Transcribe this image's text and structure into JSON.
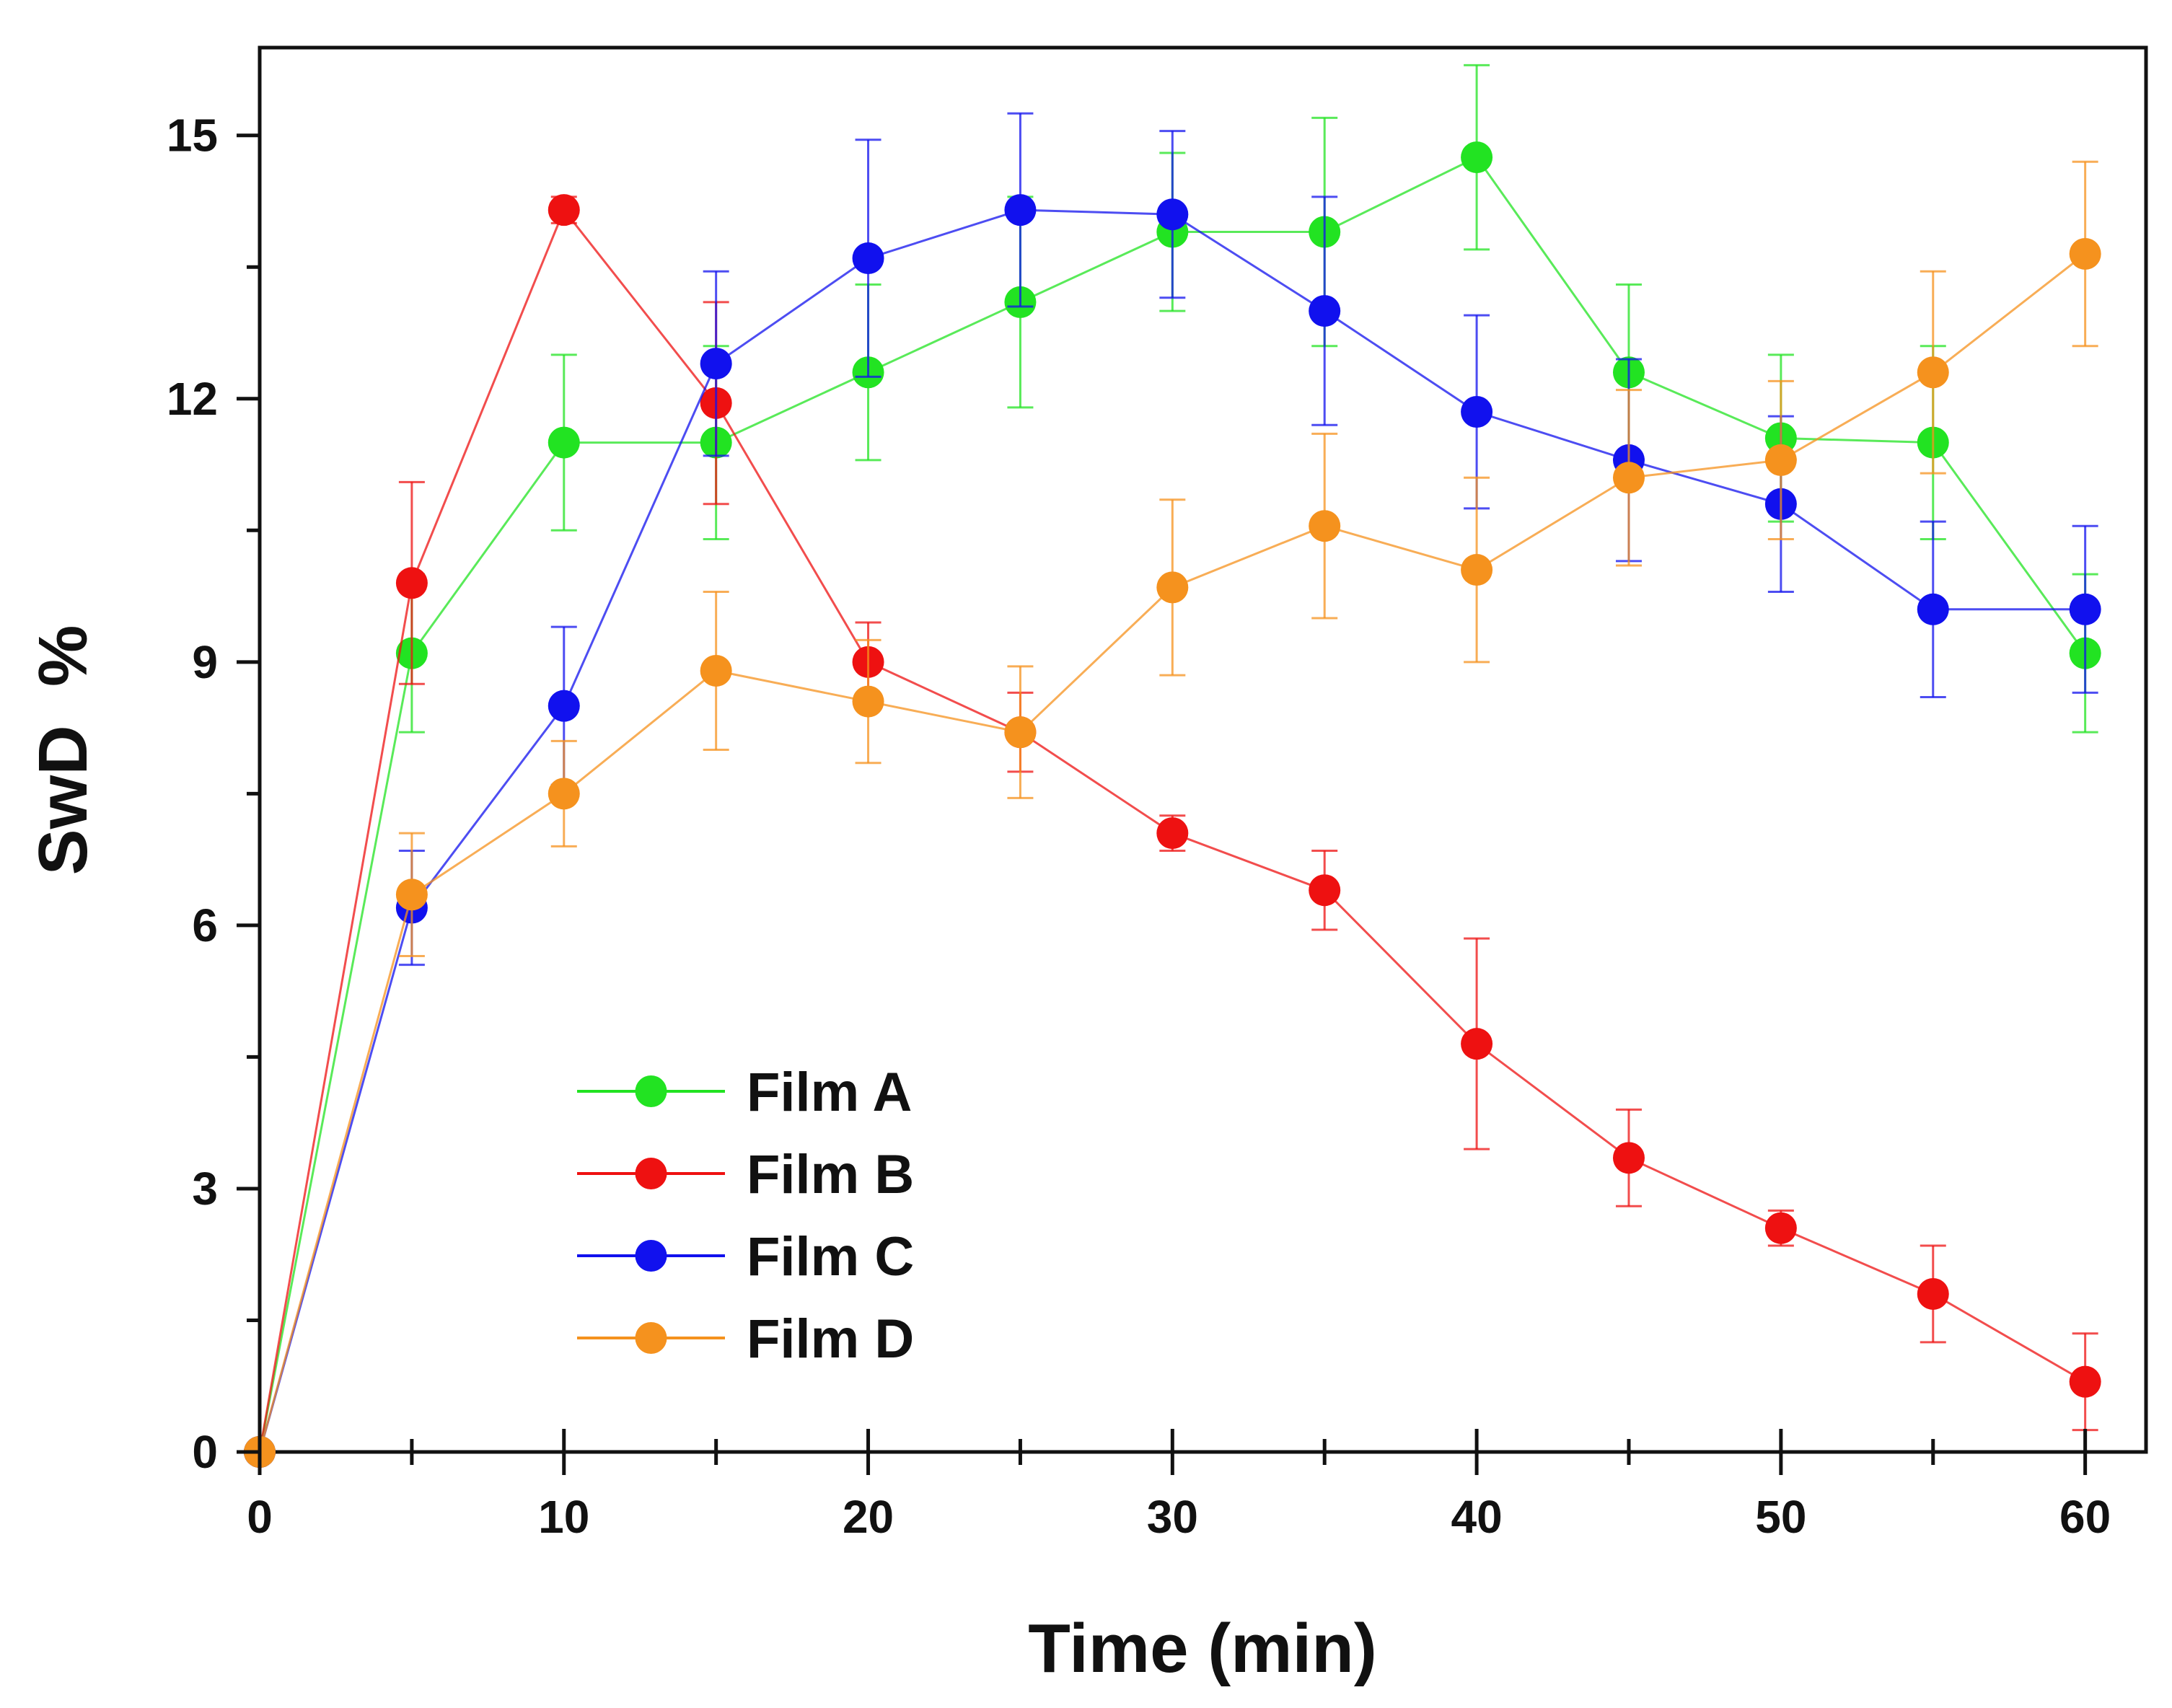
{
  "chart_data": {
    "type": "line",
    "title": "",
    "xlabel": "Time (min)",
    "ylabel": "SwD  %",
    "xlim": [
      0,
      62
    ],
    "ylim": [
      0,
      16
    ],
    "xticks": [
      0,
      10,
      20,
      30,
      40,
      50,
      60
    ],
    "yticks": [
      0,
      3,
      6,
      9,
      12,
      15
    ],
    "x": [
      0,
      5,
      10,
      15,
      20,
      25,
      30,
      35,
      40,
      45,
      50,
      55,
      60
    ],
    "legend_position": "bottom-left",
    "series": [
      {
        "name": "Film A",
        "color": "#22e322",
        "values": [
          0,
          9.1,
          11.5,
          11.5,
          12.3,
          13.1,
          13.9,
          13.9,
          14.75,
          12.3,
          11.55,
          11.5,
          9.1
        ],
        "errors": [
          0,
          0.9,
          1.0,
          1.1,
          1.0,
          1.2,
          0.9,
          1.3,
          1.05,
          1.0,
          0.95,
          1.1,
          0.9
        ]
      },
      {
        "name": "Film B",
        "color": "#ee1111",
        "values": [
          0,
          9.9,
          14.15,
          11.95,
          9.0,
          8.2,
          7.05,
          6.4,
          4.65,
          3.35,
          2.55,
          1.8,
          0.8
        ],
        "errors": [
          0,
          1.15,
          0.15,
          1.15,
          0.45,
          0.45,
          0.2,
          0.45,
          1.2,
          0.55,
          0.2,
          0.55,
          0.55
        ]
      },
      {
        "name": "Film C",
        "color": "#1111ee",
        "values": [
          0,
          6.2,
          8.5,
          12.4,
          13.6,
          14.15,
          14.1,
          13.0,
          11.85,
          11.3,
          10.8,
          9.6,
          9.6
        ],
        "errors": [
          0,
          0.65,
          0.9,
          1.05,
          1.35,
          1.1,
          0.95,
          1.3,
          1.1,
          1.15,
          1.0,
          1.0,
          0.95
        ]
      },
      {
        "name": "Film D",
        "color": "#f5921e",
        "values": [
          0,
          6.35,
          7.5,
          8.9,
          8.55,
          8.2,
          9.85,
          10.55,
          10.05,
          11.1,
          11.3,
          12.3,
          13.65
        ],
        "errors": [
          0,
          0.7,
          0.6,
          0.9,
          0.7,
          0.75,
          1.0,
          1.05,
          1.05,
          1.0,
          0.9,
          1.15,
          1.05
        ]
      }
    ]
  }
}
